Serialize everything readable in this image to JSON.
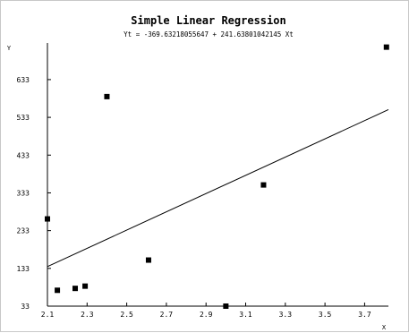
{
  "chart_data": {
    "type": "scatter",
    "title": "Simple Linear Regression",
    "subtitle": "Yt = -369.63218055647 + 241.63801042145 Xt",
    "xlabel": "X",
    "ylabel": "Y",
    "xlim": [
      2.1,
      3.82
    ],
    "ylim": [
      33,
      730
    ],
    "xticks": [
      2.1,
      2.3,
      2.5,
      2.7,
      2.9,
      3.1,
      3.3,
      3.5,
      3.7
    ],
    "xtick_labels": [
      "2.1",
      "2.3",
      "2.5",
      "2.7",
      "2.9",
      "3.1",
      "3.3",
      "3.5",
      "3.7"
    ],
    "yticks": [
      33,
      133,
      233,
      333,
      433,
      533,
      633
    ],
    "ytick_labels": [
      "33",
      "133",
      "233",
      "333",
      "433",
      "533",
      "633"
    ],
    "grid": false,
    "points": [
      {
        "x": 2.1,
        "y": 264
      },
      {
        "x": 2.15,
        "y": 75
      },
      {
        "x": 2.24,
        "y": 80
      },
      {
        "x": 2.29,
        "y": 86
      },
      {
        "x": 2.4,
        "y": 588
      },
      {
        "x": 2.61,
        "y": 155
      },
      {
        "x": 3.0,
        "y": 33
      },
      {
        "x": 3.19,
        "y": 354
      },
      {
        "x": 3.81,
        "y": 719
      }
    ],
    "regression": {
      "intercept": -369.63218055647,
      "slope": 241.63801042145
    },
    "colors": {
      "points": "#000000",
      "line": "#000000",
      "axis": "#000000",
      "frame": "#c8c8c8"
    }
  }
}
